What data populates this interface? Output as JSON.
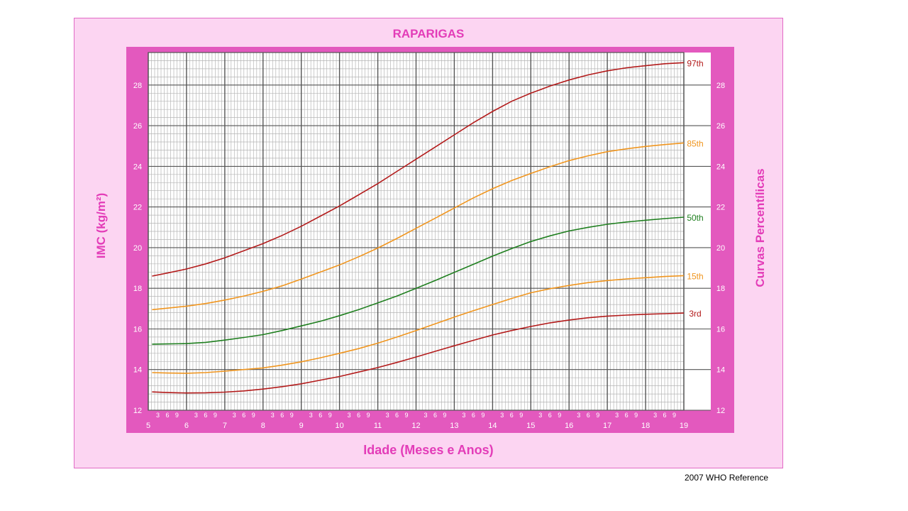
{
  "chart_data": {
    "type": "line",
    "title": "RAPARIGAS",
    "xlabel": "Idade (Meses e Anos)",
    "ylabel": "IMC (kg/m²)",
    "ylabel_right": "Curvas Percentílicas",
    "footer": "2007  WHO Reference",
    "xlim": [
      5,
      19
    ],
    "ylim": [
      12,
      29.6
    ],
    "x_ticks": [
      5,
      6,
      7,
      8,
      9,
      10,
      11,
      12,
      13,
      14,
      15,
      16,
      17,
      18,
      19
    ],
    "x_month_ticks": [
      "3",
      "6",
      "9"
    ],
    "y_ticks": [
      12,
      14,
      16,
      18,
      20,
      22,
      24,
      26,
      28
    ],
    "grid": true,
    "x": [
      5.1,
      5.5,
      6,
      6.5,
      7,
      7.5,
      8,
      8.5,
      9,
      9.5,
      10,
      10.5,
      11,
      11.5,
      12,
      12.5,
      13,
      13.5,
      14,
      14.5,
      15,
      15.5,
      16,
      16.5,
      17,
      17.5,
      18,
      18.5,
      19
    ],
    "series": [
      {
        "name": "97th",
        "color": "#b31b1b",
        "values": [
          18.6,
          18.75,
          18.95,
          19.2,
          19.5,
          19.85,
          20.2,
          20.6,
          21.05,
          21.55,
          22.05,
          22.6,
          23.15,
          23.75,
          24.35,
          24.95,
          25.55,
          26.15,
          26.7,
          27.2,
          27.6,
          27.95,
          28.25,
          28.5,
          28.7,
          28.85,
          28.95,
          29.05,
          29.1
        ]
      },
      {
        "name": "85th",
        "color": "#f0951e",
        "values": [
          16.95,
          17.02,
          17.12,
          17.25,
          17.42,
          17.62,
          17.85,
          18.12,
          18.45,
          18.8,
          19.15,
          19.55,
          19.98,
          20.45,
          20.95,
          21.45,
          21.95,
          22.45,
          22.9,
          23.3,
          23.65,
          23.98,
          24.28,
          24.52,
          24.72,
          24.86,
          24.98,
          25.07,
          25.15
        ]
      },
      {
        "name": "50th",
        "color": "#1f7f1f",
        "values": [
          15.25,
          15.26,
          15.28,
          15.34,
          15.45,
          15.58,
          15.72,
          15.92,
          16.15,
          16.38,
          16.65,
          16.95,
          17.28,
          17.62,
          18.0,
          18.38,
          18.78,
          19.18,
          19.58,
          19.95,
          20.3,
          20.58,
          20.82,
          21.0,
          21.15,
          21.26,
          21.35,
          21.43,
          21.5
        ]
      },
      {
        "name": "15th",
        "color": "#f0951e",
        "values": [
          13.85,
          13.83,
          13.82,
          13.85,
          13.92,
          14.0,
          14.08,
          14.22,
          14.38,
          14.58,
          14.8,
          15.03,
          15.3,
          15.6,
          15.92,
          16.25,
          16.58,
          16.9,
          17.2,
          17.5,
          17.78,
          17.98,
          18.14,
          18.28,
          18.38,
          18.46,
          18.52,
          18.58,
          18.62
        ]
      },
      {
        "name": "3rd",
        "color": "#b31b1b",
        "values": [
          12.9,
          12.87,
          12.85,
          12.86,
          12.89,
          12.95,
          13.04,
          13.16,
          13.3,
          13.48,
          13.66,
          13.88,
          14.1,
          14.35,
          14.62,
          14.9,
          15.17,
          15.44,
          15.7,
          15.92,
          16.12,
          16.3,
          16.44,
          16.55,
          16.63,
          16.68,
          16.72,
          16.75,
          16.78
        ]
      }
    ]
  }
}
